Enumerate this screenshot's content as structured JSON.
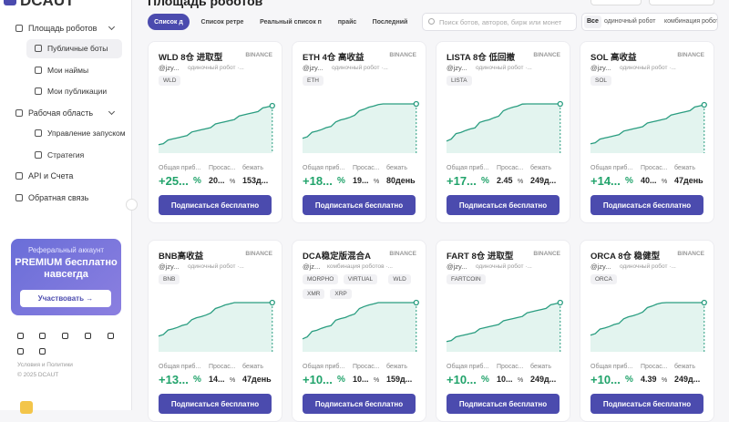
{
  "sidebar": {
    "logo": "DCAUT",
    "menu": [
      {
        "label": "Площадь роботов",
        "children": [
          "Публичные боты",
          "Мои наймы",
          "Мои публикации"
        ]
      },
      {
        "label": "Рабочая область",
        "children": [
          "Управление запуском",
          "Стратегия"
        ]
      },
      {
        "label": "API и Счета",
        "children": []
      },
      {
        "label": "Обратная связь",
        "children": []
      }
    ],
    "referral": {
      "label": "Реферальный аккаунт",
      "headline": "PREMIUM бесплатно навсегда",
      "button": "Участвовать →"
    },
    "footer": [
      "Условия и Политики",
      "© 2025 DCAUT"
    ]
  },
  "header": {
    "title": "Площадь роботов",
    "tabs": [
      "Список д",
      "Список ретре",
      "Реальный список п",
      "прайс",
      "Последний"
    ],
    "search_placeholder": "Поиск ботов, авторов, бирж или монет",
    "filters": [
      "Все",
      "одиночный робот",
      "комбинация робот"
    ]
  },
  "cards": [
    {
      "title": "WLD 8仓 进取型",
      "exchange": "BINANCE",
      "author": "@jzy...",
      "kind": "одиночный робот ·...",
      "tags": [
        "WLD"
      ],
      "stats": [
        {
          "label": "Общая приб...",
          "value": "+25...",
          "unit": "%"
        },
        {
          "label": "Просас...",
          "value": "20...",
          "unit": "%"
        },
        {
          "label": "бежать",
          "value": "153д..."
        }
      ],
      "button": "Подписаться бесплатно"
    },
    {
      "title": "ETH 4仓 高收益",
      "exchange": "BINANCE",
      "author": "@jzy...",
      "kind": "одиночный робот ·...",
      "tags": [
        "ETH"
      ],
      "stats": [
        {
          "label": "Общая приб...",
          "value": "+18...",
          "unit": "%"
        },
        {
          "label": "Просас...",
          "value": "19...",
          "unit": "%"
        },
        {
          "label": "бежать",
          "value": "80день"
        }
      ],
      "button": "Подписаться бесплатно"
    },
    {
      "title": "LISTA 8仓 低回撤",
      "exchange": "BINANCE",
      "author": "@jzy...",
      "kind": "одиночный робот ·...",
      "tags": [
        "LISTA"
      ],
      "stats": [
        {
          "label": "Общая приб...",
          "value": "+17...",
          "unit": "%"
        },
        {
          "label": "Просас...",
          "value": "2.45",
          "unit": "%"
        },
        {
          "label": "бежать",
          "value": "249д..."
        }
      ],
      "button": "Подписаться бесплатно"
    },
    {
      "title": "SOL 高收益",
      "exchange": "BINANCE",
      "author": "@jzy...",
      "kind": "одиночный робот ·...",
      "tags": [
        "SOL"
      ],
      "stats": [
        {
          "label": "Общая приб...",
          "value": "+14...",
          "unit": "%"
        },
        {
          "label": "Просас...",
          "value": "40...",
          "unit": "%"
        },
        {
          "label": "бежать",
          "value": "47день"
        }
      ],
      "button": "Подписаться бесплатно"
    },
    {
      "title": "BNB高收益",
      "exchange": "BINANCE",
      "author": "@jzy...",
      "kind": "одиночный робот ·...",
      "tags": [
        "BNB"
      ],
      "stats": [
        {
          "label": "Общая приб...",
          "value": "+13...",
          "unit": "%"
        },
        {
          "label": "Просас...",
          "value": "14...",
          "unit": "%"
        },
        {
          "label": "бежать",
          "value": "47день"
        }
      ],
      "button": "Подписаться бесплатно"
    },
    {
      "title": "DCA稳定版混合A",
      "exchange": "BINANCE",
      "author": "@jz...",
      "kind": "комбинация роботов ·...",
      "tags": [
        "MORPHO",
        "VIRTUAL",
        "WLD",
        "XMR",
        "XRP"
      ],
      "stats": [
        {
          "label": "Общая приб...",
          "value": "+10...",
          "unit": "%"
        },
        {
          "label": "Просас...",
          "value": "10...",
          "unit": "%"
        },
        {
          "label": "бежать",
          "value": "159д..."
        }
      ],
      "button": "Подписаться бесплатно"
    },
    {
      "title": "FART 8仓 进取型",
      "exchange": "BINANCE",
      "author": "@jzy...",
      "kind": "одиночный робот ·...",
      "tags": [
        "FARTCOIN"
      ],
      "stats": [
        {
          "label": "Общая приб...",
          "value": "+10...",
          "unit": "%"
        },
        {
          "label": "Просас...",
          "value": "10...",
          "unit": "%"
        },
        {
          "label": "бежать",
          "value": "249д..."
        }
      ],
      "button": "Подписаться бесплатно"
    },
    {
      "title": "ORCA 8仓 稳健型",
      "exchange": "BINANCE",
      "author": "@jzy...",
      "kind": "одиночный робот ·...",
      "tags": [
        "ORCA"
      ],
      "stats": [
        {
          "label": "Общая приб...",
          "value": "+10...",
          "unit": "%"
        },
        {
          "label": "Просас...",
          "value": "4.39",
          "unit": "%"
        },
        {
          "label": "бежать",
          "value": "249д..."
        }
      ],
      "button": "Подписаться бесплатно"
    }
  ]
}
